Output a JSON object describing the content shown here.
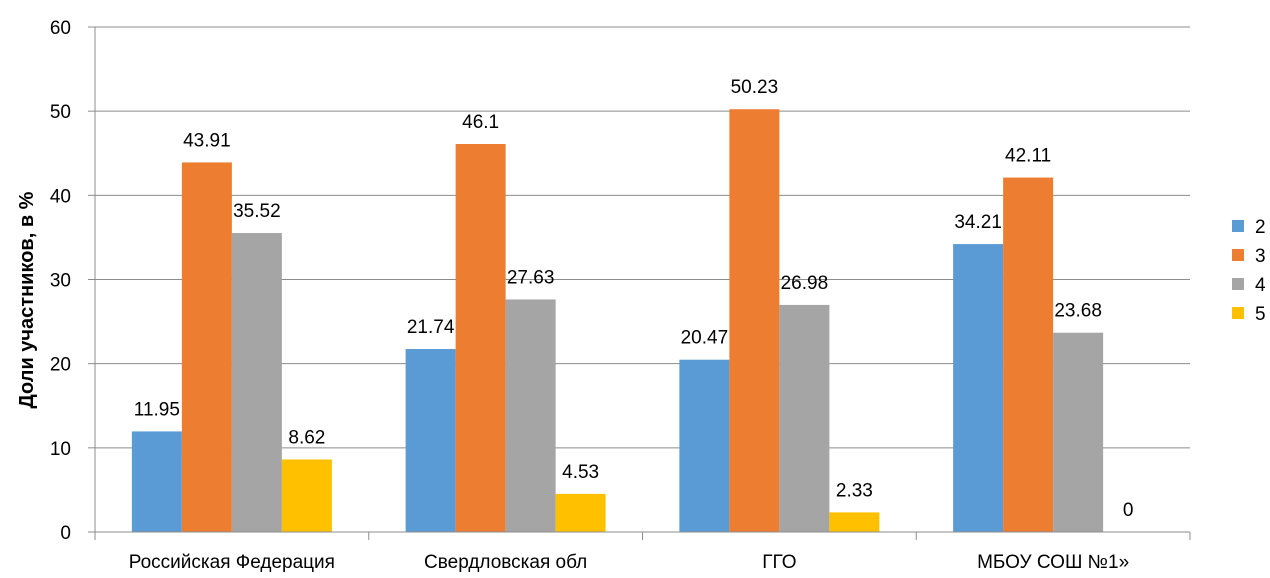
{
  "chart_data": {
    "type": "bar",
    "categories": [
      "Российская Федерация",
      "Свердловская обл",
      "ГГО",
      "МБОУ СОШ №1»"
    ],
    "series": [
      {
        "name": "2",
        "color": "#5B9BD5",
        "values": [
          11.95,
          21.74,
          20.47,
          34.21
        ],
        "labels": [
          "11.95",
          "21.74",
          "20.47",
          "34.21"
        ]
      },
      {
        "name": "3",
        "color": "#ED7D31",
        "values": [
          43.91,
          46.1,
          50.23,
          42.11
        ],
        "labels": [
          "43.91",
          "46.1",
          "50.23",
          "42.11"
        ]
      },
      {
        "name": "4",
        "color": "#A5A5A5",
        "values": [
          35.52,
          27.63,
          26.98,
          23.68
        ],
        "labels": [
          "35.52",
          "27.63",
          "26.98",
          "23.68"
        ]
      },
      {
        "name": "5",
        "color": "#FFC000",
        "values": [
          8.62,
          4.53,
          2.33,
          0
        ],
        "labels": [
          "8.62",
          "4.53",
          "2.33",
          "0"
        ]
      }
    ],
    "ylabel": "Доли участников, в %",
    "xlabel": "",
    "ylim": [
      0,
      60
    ],
    "yticks": [
      "0",
      "10",
      "20",
      "30",
      "40",
      "50",
      "60"
    ],
    "grid": true,
    "legend": "right"
  }
}
